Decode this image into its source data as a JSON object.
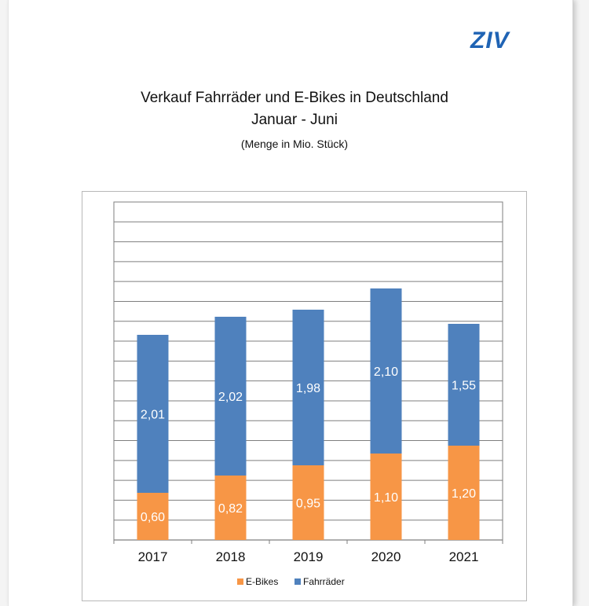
{
  "logo": "ZIV",
  "chart_data": {
    "type": "bar",
    "stacked": true,
    "title": "Verkauf Fahrräder und E-Bikes in Deutschland",
    "subtitle": "Januar - Juni",
    "unit_note": "(Menge in Mio. Stück)",
    "categories": [
      "2017",
      "2018",
      "2019",
      "2020",
      "2021"
    ],
    "series": [
      {
        "name": "E-Bikes",
        "color": "#f79646",
        "values": [
          0.6,
          0.82,
          0.95,
          1.1,
          1.2
        ],
        "labels": [
          "0,60",
          "0,82",
          "0,95",
          "1,10",
          "1,20"
        ]
      },
      {
        "name": "Fahrräder",
        "color": "#4f81bd",
        "values": [
          2.01,
          2.02,
          1.98,
          2.1,
          1.55
        ],
        "labels": [
          "2,01",
          "2,02",
          "1,98",
          "2,10",
          "1,55"
        ]
      }
    ],
    "ylim": [
      0,
      4.3
    ],
    "y_axis_labels": false,
    "grid": true,
    "legend_position": "bottom"
  }
}
